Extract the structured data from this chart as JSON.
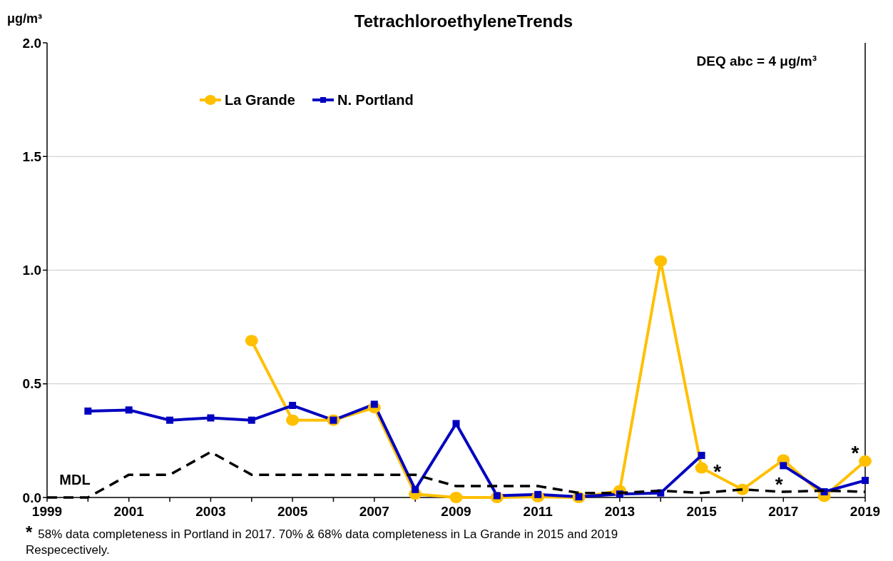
{
  "chart_data": {
    "type": "line",
    "title": "TetrachloroethyleneTrends",
    "ylabel": "μg/m³",
    "x": [
      1999,
      2000,
      2001,
      2002,
      2003,
      2004,
      2005,
      2006,
      2007,
      2008,
      2009,
      2010,
      2011,
      2012,
      2013,
      2014,
      2015,
      2016,
      2017,
      2018,
      2019
    ],
    "series": [
      {
        "name": "La Grande",
        "color": "#ffc000",
        "marker": "circle",
        "values": [
          null,
          null,
          null,
          null,
          null,
          0.69,
          0.34,
          0.34,
          0.395,
          0.015,
          0.0,
          0.0,
          0.003,
          0.0,
          0.03,
          1.04,
          0.13,
          0.035,
          0.165,
          0.005,
          0.16
        ]
      },
      {
        "name": "N. Portland",
        "color": "#0000c0",
        "marker": "square",
        "values": [
          null,
          0.38,
          0.385,
          0.34,
          0.35,
          0.34,
          0.405,
          0.34,
          0.41,
          0.035,
          0.325,
          0.008,
          0.013,
          0.003,
          0.015,
          0.02,
          0.185,
          null,
          0.14,
          0.025,
          0.075
        ]
      },
      {
        "name": "MDL",
        "color": "#000000",
        "marker": "none",
        "line_style": "dashed",
        "values": [
          0,
          0,
          0.1,
          0.1,
          0.2,
          0.1,
          0.1,
          0.1,
          0.1,
          0.1,
          0.05,
          0.05,
          0.05,
          0.02,
          0.02,
          0.03,
          0.02,
          0.035,
          0.025,
          0.03,
          0.025
        ]
      }
    ],
    "xlim": [
      1999,
      2019
    ],
    "xticks": [
      1999,
      {
        "value": 2000,
        "label": null
      },
      2001,
      {
        "value": 2002,
        "label": null
      },
      2003,
      {
        "value": 2004,
        "label": null
      },
      2005,
      {
        "value": 2006,
        "label": null
      },
      2007,
      {
        "value": 2008,
        "label": null
      },
      2009,
      {
        "value": 2010,
        "label": null
      },
      2011,
      {
        "value": 2012,
        "label": null
      },
      2013,
      {
        "value": 2014,
        "label": null
      },
      2015,
      {
        "value": 2016,
        "label": null
      },
      2017,
      {
        "value": 2018,
        "label": null
      },
      2019
    ],
    "ylim": [
      0,
      2
    ],
    "yticks": [
      {
        "value": 0,
        "label": "0.0"
      },
      {
        "value": 0.5,
        "label": "0.5"
      },
      {
        "value": 1,
        "label": "1.0"
      },
      {
        "value": 1.5,
        "label": "1.5"
      },
      {
        "value": 2,
        "label": "2.0"
      }
    ],
    "grid": "y",
    "legend": "top left",
    "annotations": [
      "DEQ abc = 4 μg/m³",
      {
        "text": "*",
        "x": 2015,
        "y": 0.13
      },
      {
        "text": "*",
        "x": 2017,
        "y": 0.14
      },
      {
        "text": "*",
        "x": 2019,
        "y": 0.16
      },
      "* 58% data completeness in Portland in 2017. 70% & 68% data completeness in La Grande in 2015 and 2019 Respecectively."
    ]
  }
}
